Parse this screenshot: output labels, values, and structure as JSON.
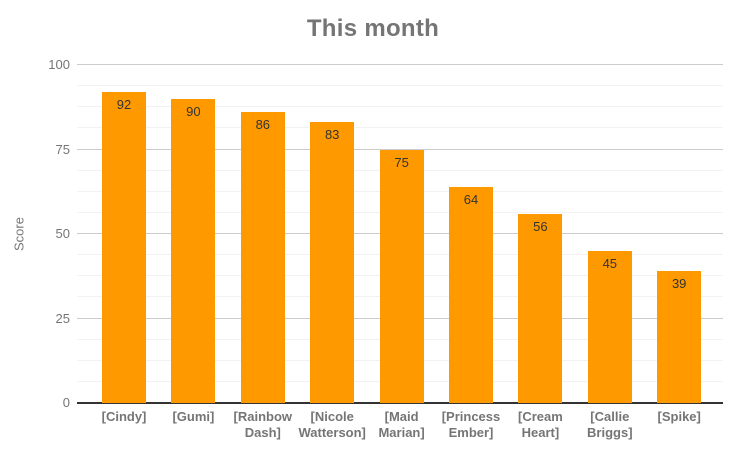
{
  "chart_data": {
    "type": "bar",
    "title": "This month",
    "categories": [
      "[Cindy]",
      "[Gumi]",
      "[Rainbow Dash]",
      "[Nicole Watterson]",
      "[Maid Marian]",
      "[Princess Ember]",
      "[Cream Heart]",
      "[Callie Briggs]",
      "[Spike]"
    ],
    "values": [
      92,
      90,
      86,
      83,
      75,
      64,
      56,
      45,
      39
    ],
    "xlabel": "",
    "ylabel": "Score",
    "ylim": [
      0,
      100
    ],
    "yticks": [
      0,
      25,
      50,
      75,
      100
    ],
    "minor_gridline_step": 6.25,
    "grid": true,
    "legend_position": "none",
    "bar_labels_shown": true,
    "colors": {
      "bar": "#ff9900",
      "bar_label": "#333333",
      "axis_text": "#757575",
      "title_text": "#757575",
      "gridline_major": "#cccccc",
      "gridline_minor": "#f2f2f2",
      "baseline": "#333333",
      "background": "#ffffff"
    }
  }
}
